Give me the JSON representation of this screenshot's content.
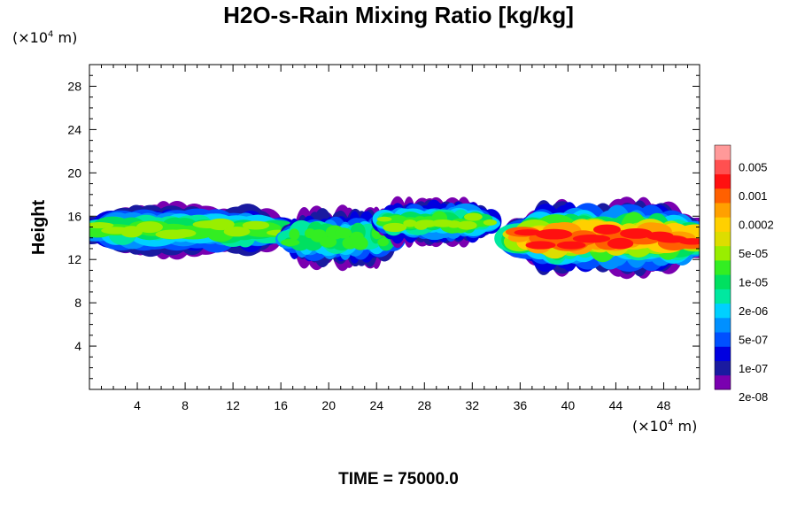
{
  "chart_data": {
    "type": "heatmap",
    "title": "H2O-s-Rain Mixing Ratio [kg/kg]",
    "ylabel": "Height",
    "xlabel": "",
    "x_unit_prefix": "(×10",
    "x_unit_exp": "4",
    "x_unit_suffix": " m)",
    "y_unit_prefix": "(×10",
    "y_unit_exp": "4",
    "y_unit_suffix": " m)",
    "xlim": [
      0,
      51
    ],
    "ylim": [
      0,
      30
    ],
    "x_ticks": [
      4,
      8,
      12,
      16,
      20,
      24,
      28,
      32,
      36,
      40,
      44,
      48
    ],
    "y_ticks": [
      4,
      8,
      12,
      16,
      20,
      24,
      28
    ],
    "colorbar": {
      "labels": [
        "0.005",
        "0.001",
        "0.0002",
        "5e-05",
        "1e-05",
        "2e-06",
        "5e-07",
        "1e-07",
        "2e-08"
      ],
      "colors": [
        "#7a00b0",
        "#1a1aa0",
        "#0000e0",
        "#0050ff",
        "#0090ff",
        "#00d0ff",
        "#00e8a0",
        "#00e060",
        "#33ee22",
        "#99ee00",
        "#dddd00",
        "#ffd000",
        "#ffa000",
        "#ff6000",
        "#ff1010",
        "#ff5050",
        "#ff9999"
      ]
    },
    "clouds": [
      {
        "x_start": 0,
        "x_end": 16.5,
        "y_bottom": 12.2,
        "y_top": 17.2,
        "peak_level": 9
      },
      {
        "x_start": 16.5,
        "x_end": 25.5,
        "y_bottom": 11.2,
        "y_top": 16.8,
        "peak_level": 8
      },
      {
        "x_start": 24.5,
        "x_end": 33.5,
        "y_bottom": 13.2,
        "y_top": 17.7,
        "peak_level": 9
      },
      {
        "x_start": 35.5,
        "x_end": 51,
        "y_bottom": 10.5,
        "y_top": 17.5,
        "peak_level": 14
      }
    ]
  },
  "time_label": "TIME = 75000.0"
}
